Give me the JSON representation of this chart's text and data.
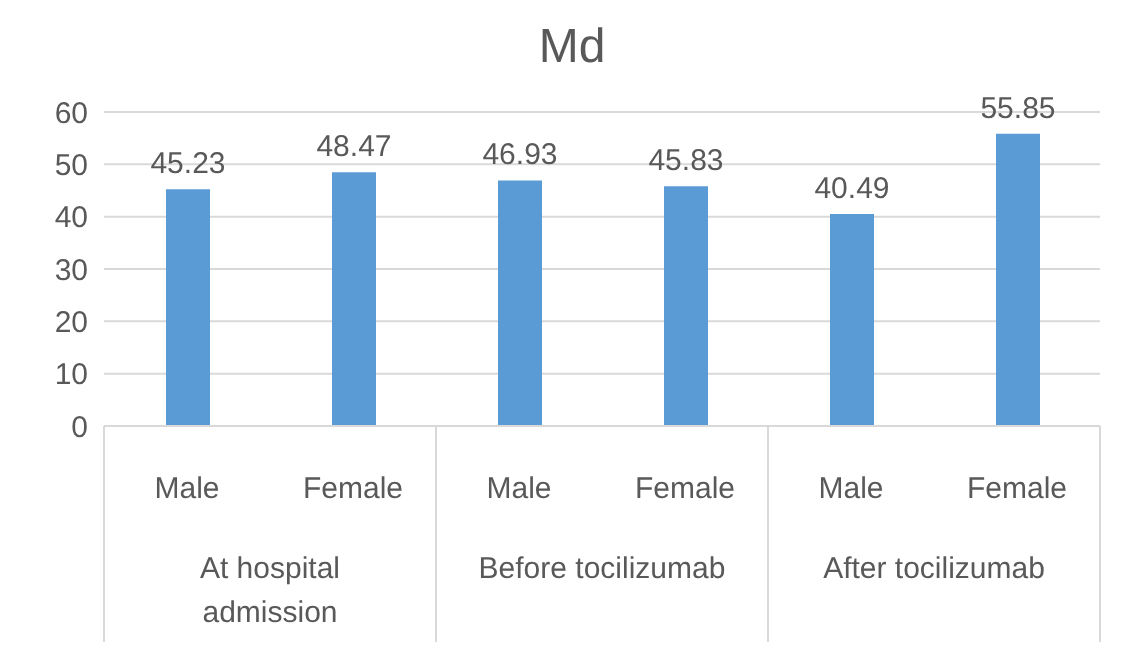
{
  "chart_data": {
    "type": "bar",
    "title": "Md",
    "categories": [
      "Male",
      "Female",
      "Male",
      "Female",
      "Male",
      "Female"
    ],
    "values": [
      45.23,
      48.47,
      46.93,
      45.83,
      40.49,
      55.85
    ],
    "color": "#5b9bd5",
    "data_labels": true,
    "ylim": [
      0,
      60
    ],
    "yticks": [
      0,
      10,
      20,
      30,
      40,
      50,
      60
    ],
    "grid": "y",
    "legend": false,
    "annotations": [
      "At hospital admission",
      "Before tocilizumab",
      "After tocilizumab"
    ]
  }
}
